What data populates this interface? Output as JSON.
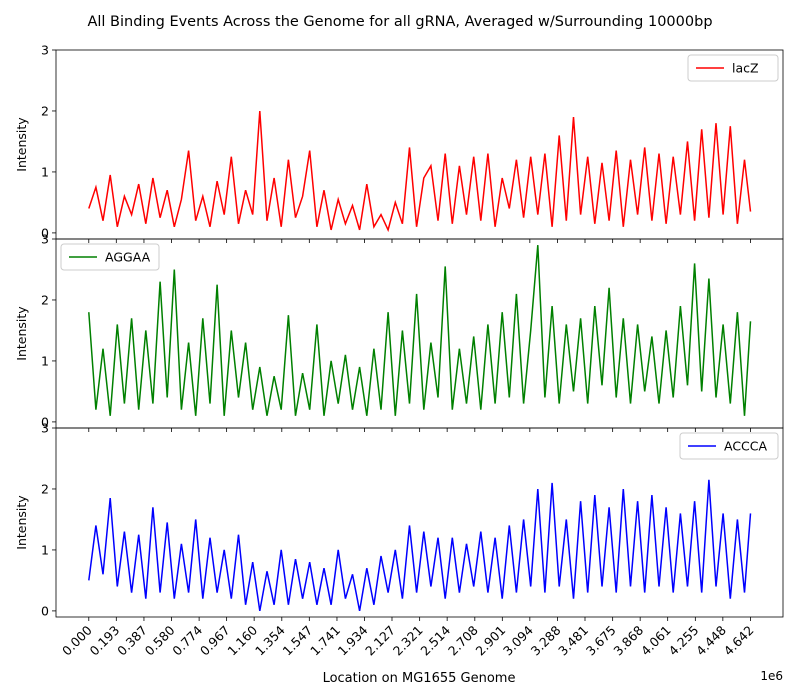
{
  "title": "All Binding Events Across the Genome for all gRNA, Averaged w/Surrounding 10000bp",
  "xlabel": "Location on MG1655 Genome",
  "x_offset_text": "1e6",
  "chart_data": [
    {
      "type": "line",
      "series": [
        {
          "name": "lacZ",
          "color": "#ff0000",
          "x": [
            0,
            0.05,
            0.1,
            0.15,
            0.2,
            0.25,
            0.3,
            0.35,
            0.4,
            0.45,
            0.5,
            0.55,
            0.6,
            0.65,
            0.7,
            0.75,
            0.8,
            0.85,
            0.9,
            0.95,
            1.0,
            1.05,
            1.1,
            1.15,
            1.2,
            1.25,
            1.3,
            1.35,
            1.4,
            1.45,
            1.5,
            1.55,
            1.6,
            1.65,
            1.7,
            1.75,
            1.8,
            1.85,
            1.9,
            1.95,
            2.0,
            2.05,
            2.1,
            2.15,
            2.2,
            2.25,
            2.3,
            2.35,
            2.4,
            2.45,
            2.5,
            2.55,
            2.6,
            2.65,
            2.7,
            2.75,
            2.8,
            2.85,
            2.9,
            2.95,
            3.0,
            3.05,
            3.1,
            3.15,
            3.2,
            3.25,
            3.3,
            3.35,
            3.4,
            3.45,
            3.5,
            3.55,
            3.6,
            3.65,
            3.7,
            3.75,
            3.8,
            3.85,
            3.9,
            3.95,
            4.0,
            4.05,
            4.1,
            4.15,
            4.2,
            4.25,
            4.3,
            4.35,
            4.4,
            4.45,
            4.5,
            4.55,
            4.6,
            4.642
          ],
          "values": [
            0.4,
            0.75,
            0.2,
            0.95,
            0.1,
            0.6,
            0.3,
            0.8,
            0.15,
            0.9,
            0.25,
            0.7,
            0.1,
            0.55,
            1.35,
            0.2,
            0.6,
            0.1,
            0.85,
            0.3,
            1.25,
            0.15,
            0.7,
            0.3,
            2.0,
            0.2,
            0.9,
            0.1,
            1.2,
            0.25,
            0.6,
            1.35,
            0.1,
            0.7,
            0.05,
            0.55,
            0.15,
            0.45,
            0.05,
            0.8,
            0.1,
            0.3,
            0.05,
            0.5,
            0.15,
            1.4,
            0.1,
            0.9,
            1.1,
            0.2,
            1.3,
            0.15,
            1.1,
            0.3,
            1.25,
            0.2,
            1.3,
            0.1,
            0.9,
            0.4,
            1.2,
            0.25,
            1.25,
            0.3,
            1.3,
            0.1,
            1.6,
            0.2,
            1.9,
            0.3,
            1.25,
            0.15,
            1.15,
            0.2,
            1.35,
            0.1,
            1.2,
            0.3,
            1.4,
            0.2,
            1.3,
            0.15,
            1.25,
            0.3,
            1.5,
            0.2,
            1.7,
            0.25,
            1.8,
            0.3,
            1.75,
            0.15,
            1.2,
            0.35
          ]
        }
      ],
      "ylabel": "Intensity",
      "ylim": [
        -0.1,
        3.0
      ],
      "yticks": [
        "0",
        "1",
        "2",
        "3"
      ],
      "legend_position": "upper right"
    },
    {
      "type": "line",
      "series": [
        {
          "name": "AGGAA",
          "color": "#008000",
          "x": [
            0,
            0.05,
            0.1,
            0.15,
            0.2,
            0.25,
            0.3,
            0.35,
            0.4,
            0.45,
            0.5,
            0.55,
            0.6,
            0.65,
            0.7,
            0.75,
            0.8,
            0.85,
            0.9,
            0.95,
            1.0,
            1.05,
            1.1,
            1.15,
            1.2,
            1.25,
            1.3,
            1.35,
            1.4,
            1.45,
            1.5,
            1.55,
            1.6,
            1.65,
            1.7,
            1.75,
            1.8,
            1.85,
            1.9,
            1.95,
            2.0,
            2.05,
            2.1,
            2.15,
            2.2,
            2.25,
            2.3,
            2.35,
            2.4,
            2.45,
            2.5,
            2.55,
            2.6,
            2.65,
            2.7,
            2.75,
            2.8,
            2.85,
            2.9,
            2.95,
            3.0,
            3.05,
            3.1,
            3.15,
            3.2,
            3.25,
            3.3,
            3.35,
            3.4,
            3.45,
            3.5,
            3.55,
            3.6,
            3.65,
            3.7,
            3.75,
            3.8,
            3.85,
            3.9,
            3.95,
            4.0,
            4.05,
            4.1,
            4.15,
            4.2,
            4.25,
            4.3,
            4.35,
            4.4,
            4.45,
            4.5,
            4.55,
            4.6,
            4.642
          ],
          "values": [
            1.8,
            0.2,
            1.2,
            0.1,
            1.6,
            0.3,
            1.7,
            0.2,
            1.5,
            0.3,
            2.3,
            0.4,
            2.5,
            0.2,
            1.3,
            0.1,
            1.7,
            0.3,
            2.25,
            0.1,
            1.5,
            0.4,
            1.3,
            0.2,
            0.9,
            0.1,
            0.75,
            0.2,
            1.75,
            0.1,
            0.8,
            0.2,
            1.6,
            0.1,
            1.0,
            0.3,
            1.1,
            0.2,
            0.9,
            0.1,
            1.2,
            0.2,
            1.8,
            0.1,
            1.5,
            0.3,
            2.1,
            0.2,
            1.3,
            0.4,
            2.55,
            0.2,
            1.2,
            0.3,
            1.4,
            0.2,
            1.6,
            0.3,
            1.8,
            0.4,
            2.1,
            0.3,
            1.5,
            2.9,
            0.4,
            1.9,
            0.3,
            1.6,
            0.5,
            1.7,
            0.3,
            1.9,
            0.6,
            2.2,
            0.4,
            1.7,
            0.3,
            1.6,
            0.5,
            1.4,
            0.3,
            1.5,
            0.4,
            1.9,
            0.6,
            2.6,
            0.5,
            2.35,
            0.4,
            1.6,
            0.3,
            1.8,
            0.1,
            1.65
          ]
        }
      ],
      "ylabel": "Intensity",
      "ylim": [
        -0.1,
        3.0
      ],
      "yticks": [
        "0",
        "1",
        "2",
        "3"
      ],
      "legend_position": "upper left"
    },
    {
      "type": "line",
      "series": [
        {
          "name": "ACCCA",
          "color": "#0000ff",
          "x": [
            0,
            0.05,
            0.1,
            0.15,
            0.2,
            0.25,
            0.3,
            0.35,
            0.4,
            0.45,
            0.5,
            0.55,
            0.6,
            0.65,
            0.7,
            0.75,
            0.8,
            0.85,
            0.9,
            0.95,
            1.0,
            1.05,
            1.1,
            1.15,
            1.2,
            1.25,
            1.3,
            1.35,
            1.4,
            1.45,
            1.5,
            1.55,
            1.6,
            1.65,
            1.7,
            1.75,
            1.8,
            1.85,
            1.9,
            1.95,
            2.0,
            2.05,
            2.1,
            2.15,
            2.2,
            2.25,
            2.3,
            2.35,
            2.4,
            2.45,
            2.5,
            2.55,
            2.6,
            2.65,
            2.7,
            2.75,
            2.8,
            2.85,
            2.9,
            2.95,
            3.0,
            3.05,
            3.1,
            3.15,
            3.2,
            3.25,
            3.3,
            3.35,
            3.4,
            3.45,
            3.5,
            3.55,
            3.6,
            3.65,
            3.7,
            3.75,
            3.8,
            3.85,
            3.9,
            3.95,
            4.0,
            4.05,
            4.1,
            4.15,
            4.2,
            4.25,
            4.3,
            4.35,
            4.4,
            4.45,
            4.5,
            4.55,
            4.6,
            4.642
          ],
          "values": [
            0.5,
            1.4,
            0.6,
            1.85,
            0.4,
            1.3,
            0.3,
            1.25,
            0.2,
            1.7,
            0.3,
            1.45,
            0.2,
            1.1,
            0.3,
            1.5,
            0.2,
            1.2,
            0.3,
            1.0,
            0.2,
            1.25,
            0.1,
            0.8,
            0.0,
            0.65,
            0.1,
            1.0,
            0.1,
            0.85,
            0.2,
            0.8,
            0.1,
            0.7,
            0.1,
            1.0,
            0.2,
            0.6,
            0.0,
            0.7,
            0.1,
            0.9,
            0.3,
            1.0,
            0.2,
            1.4,
            0.3,
            1.3,
            0.4,
            1.2,
            0.2,
            1.2,
            0.3,
            1.1,
            0.4,
            1.3,
            0.3,
            1.2,
            0.2,
            1.4,
            0.3,
            1.5,
            0.4,
            2.0,
            0.3,
            2.1,
            0.4,
            1.5,
            0.2,
            1.8,
            0.3,
            1.9,
            0.4,
            1.7,
            0.3,
            2.0,
            0.4,
            1.8,
            0.3,
            1.9,
            0.4,
            1.7,
            0.3,
            1.6,
            0.4,
            1.8,
            0.3,
            2.15,
            0.4,
            1.6,
            0.2,
            1.5,
            0.3,
            1.6
          ]
        }
      ],
      "ylabel": "Intensity",
      "ylim": [
        -0.1,
        3.0
      ],
      "yticks": [
        "0",
        "1",
        "2",
        "3"
      ],
      "legend_position": "upper right"
    }
  ],
  "xlim": [
    -0.23,
    4.87
  ],
  "xticks": [
    "0.000",
    "0.193",
    "0.387",
    "0.580",
    "0.774",
    "0.967",
    "1.160",
    "1.354",
    "1.547",
    "1.741",
    "1.934",
    "2.127",
    "2.321",
    "2.514",
    "2.708",
    "2.901",
    "3.094",
    "3.288",
    "3.481",
    "3.675",
    "3.868",
    "4.061",
    "4.255",
    "4.448",
    "4.642"
  ]
}
